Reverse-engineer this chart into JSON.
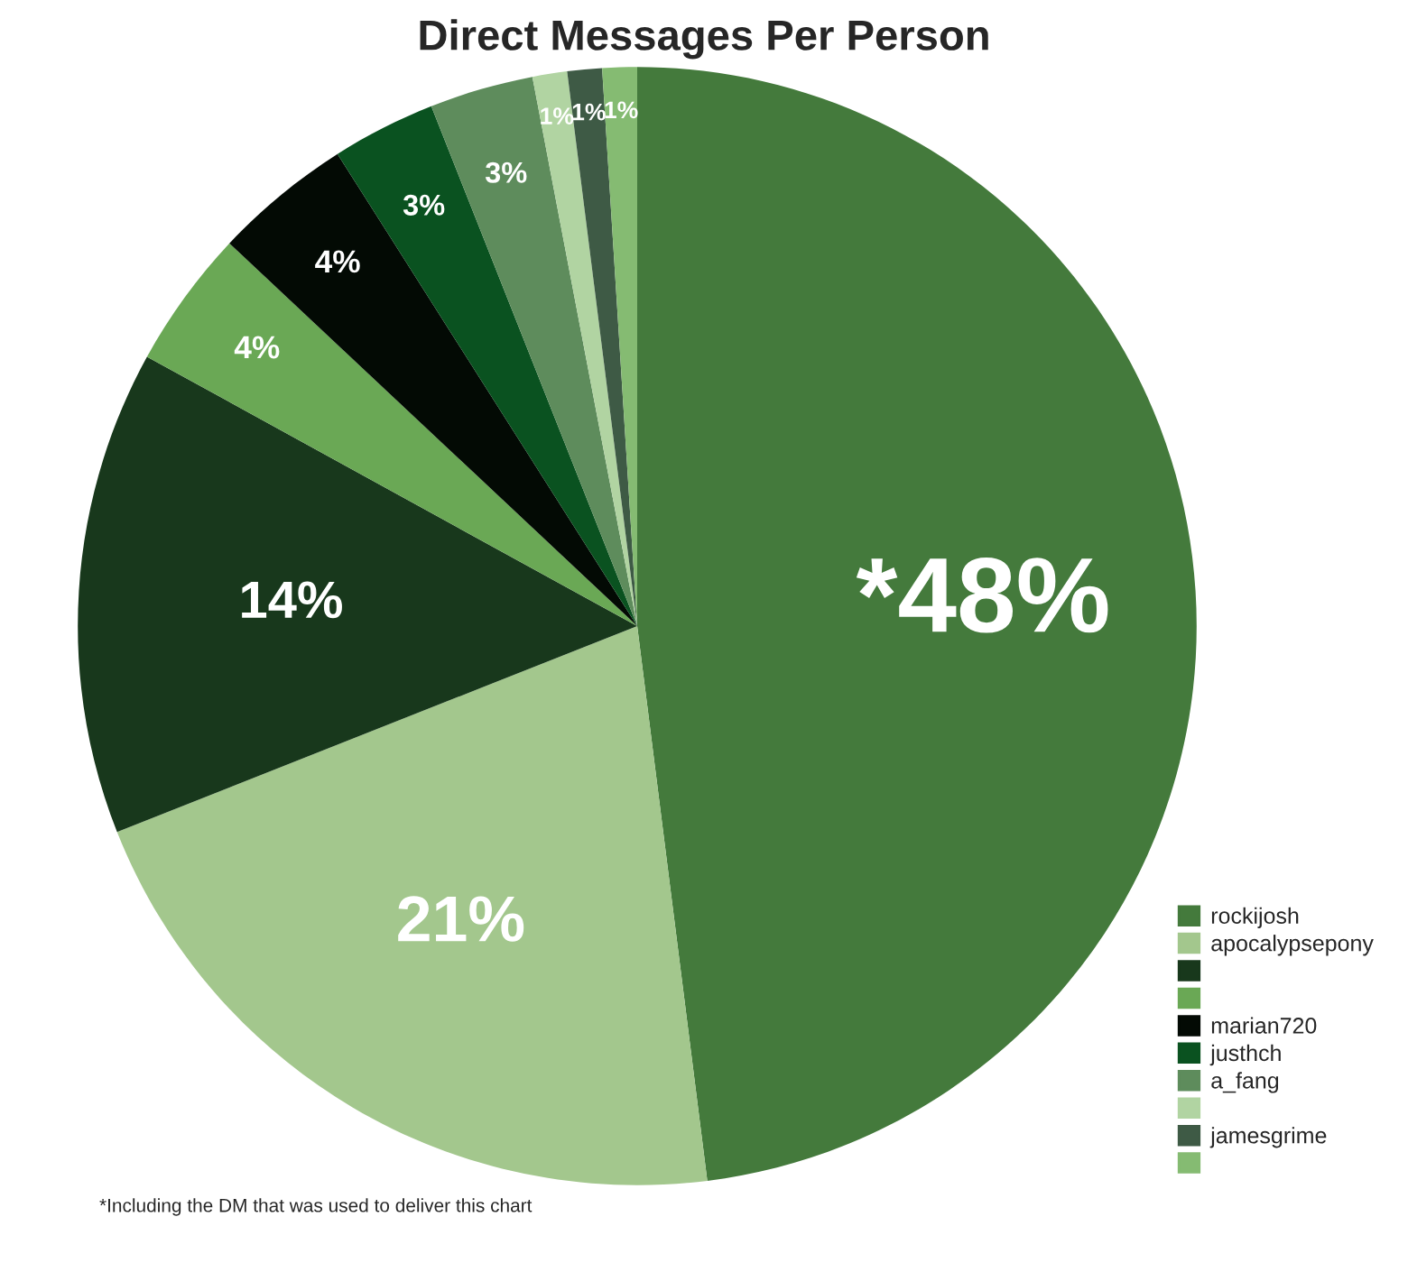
{
  "chart_data": {
    "type": "pie",
    "title": "Direct Messages Per Person",
    "categories": [
      "rockijosh",
      "apocalypsepony",
      null,
      null,
      "marian720",
      "justhch",
      "a_fang",
      null,
      "jamesgrime",
      null
    ],
    "values": [
      48,
      21,
      14,
      4,
      4,
      3,
      3,
      1,
      1,
      1
    ],
    "value_labels": [
      "*48%",
      "21%",
      "14%",
      "4%",
      "4%",
      "3%",
      "3%",
      "1%",
      "1%",
      "1%"
    ],
    "colors": [
      "#447a3c",
      "#a3c78d",
      "#18381c",
      "#6aa855",
      "#030a04",
      "#0a5220",
      "#5e8c5c",
      "#b1d4a2",
      "#3e5a45",
      "#85bb72"
    ],
    "legend": "bottom right",
    "annotations": [
      "*Including the DM that was used to deliver this chart"
    ]
  }
}
